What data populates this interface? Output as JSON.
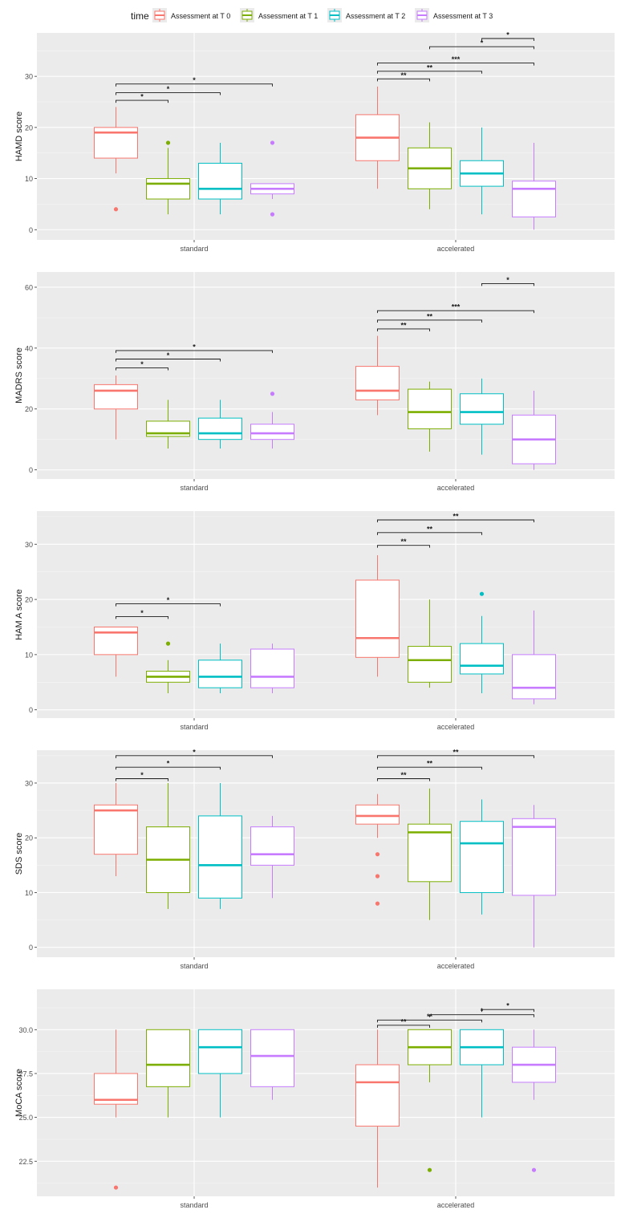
{
  "legend": {
    "title": "time",
    "entries": [
      {
        "label": "Assessment at T 0",
        "color": "#f8766d"
      },
      {
        "label": "Assessment at T 1",
        "color": "#7cae00"
      },
      {
        "label": "Assessment at T 2",
        "color": "#00bfc4"
      },
      {
        "label": "Assessment at T 3",
        "color": "#c77cff"
      }
    ],
    "placement": "top"
  },
  "chart_data": [
    {
      "type": "box",
      "ylabel": "HAMD score",
      "ylim": [
        -2,
        38.5
      ],
      "yticks": [
        0,
        10,
        20,
        30
      ],
      "categories": [
        "standard",
        "accelerated"
      ],
      "series": [
        {
          "name": "Assessment at T 0",
          "color": "#f8766d",
          "boxes": [
            {
              "q1": 14,
              "median": 19,
              "q3": 20,
              "whisker_low": 11,
              "whisker_high": 24,
              "outliers": [
                4
              ]
            },
            {
              "q1": 13.5,
              "median": 18,
              "q3": 22.5,
              "whisker_low": 8,
              "whisker_high": 28,
              "outliers": []
            }
          ]
        },
        {
          "name": "Assessment at T 1",
          "color": "#7cae00",
          "boxes": [
            {
              "q1": 6,
              "median": 9,
              "q3": 10,
              "whisker_low": 3,
              "whisker_high": 16,
              "outliers": [
                17
              ]
            },
            {
              "q1": 8,
              "median": 12,
              "q3": 16,
              "whisker_low": 4,
              "whisker_high": 21,
              "outliers": []
            }
          ]
        },
        {
          "name": "Assessment at T 2",
          "color": "#00bfc4",
          "boxes": [
            {
              "q1": 6,
              "median": 8,
              "q3": 13,
              "whisker_low": 3,
              "whisker_high": 17,
              "outliers": []
            },
            {
              "q1": 8.5,
              "median": 11,
              "q3": 13.5,
              "whisker_low": 3,
              "whisker_high": 20,
              "outliers": []
            }
          ]
        },
        {
          "name": "Assessment at T 3",
          "color": "#c77cff",
          "boxes": [
            {
              "q1": 7,
              "median": 8,
              "q3": 9,
              "whisker_low": 6,
              "whisker_high": 9,
              "outliers": [
                17,
                3
              ]
            },
            {
              "q1": 2.5,
              "median": 8,
              "q3": 9.5,
              "whisker_low": 0,
              "whisker_high": 17,
              "outliers": []
            }
          ]
        }
      ],
      "brackets": [
        {
          "category": 0,
          "from": 0,
          "to": 1,
          "label": "*",
          "y": 25.3
        },
        {
          "category": 0,
          "from": 0,
          "to": 2,
          "label": "*",
          "y": 26.8
        },
        {
          "category": 0,
          "from": 0,
          "to": 3,
          "label": "*",
          "y": 28.5
        },
        {
          "category": 1,
          "from": 0,
          "to": 1,
          "label": "**",
          "y": 29.5
        },
        {
          "category": 1,
          "from": 0,
          "to": 2,
          "label": "**",
          "y": 31
        },
        {
          "category": 1,
          "from": 0,
          "to": 3,
          "label": "***",
          "y": 32.6
        },
        {
          "category": 1,
          "from": 1,
          "to": 3,
          "label": "*",
          "y": 35.8
        },
        {
          "category": 1,
          "from": 2,
          "to": 3,
          "label": "*",
          "y": 37.4
        }
      ]
    },
    {
      "type": "box",
      "ylabel": "MADRS score",
      "ylim": [
        -3,
        65
      ],
      "yticks": [
        0,
        20,
        40,
        60
      ],
      "categories": [
        "standard",
        "accelerated"
      ],
      "series": [
        {
          "name": "Assessment at T 0",
          "color": "#f8766d",
          "boxes": [
            {
              "q1": 20,
              "median": 26,
              "q3": 28,
              "whisker_low": 10,
              "whisker_high": 31,
              "outliers": []
            },
            {
              "q1": 23,
              "median": 26,
              "q3": 34,
              "whisker_low": 18,
              "whisker_high": 44,
              "outliers": []
            }
          ]
        },
        {
          "name": "Assessment at T 1",
          "color": "#7cae00",
          "boxes": [
            {
              "q1": 11,
              "median": 12,
              "q3": 16,
              "whisker_low": 7,
              "whisker_high": 23,
              "outliers": []
            },
            {
              "q1": 13.5,
              "median": 19,
              "q3": 26.5,
              "whisker_low": 6,
              "whisker_high": 29,
              "outliers": []
            }
          ]
        },
        {
          "name": "Assessment at T 2",
          "color": "#00bfc4",
          "boxes": [
            {
              "q1": 10,
              "median": 12,
              "q3": 17,
              "whisker_low": 7,
              "whisker_high": 23,
              "outliers": []
            },
            {
              "q1": 15,
              "median": 19,
              "q3": 25,
              "whisker_low": 5,
              "whisker_high": 30,
              "outliers": []
            }
          ]
        },
        {
          "name": "Assessment at T 3",
          "color": "#c77cff",
          "boxes": [
            {
              "q1": 10,
              "median": 12,
              "q3": 15,
              "whisker_low": 7,
              "whisker_high": 19,
              "outliers": [
                25
              ]
            },
            {
              "q1": 2,
              "median": 10,
              "q3": 18,
              "whisker_low": 0,
              "whisker_high": 26,
              "outliers": []
            }
          ]
        }
      ],
      "brackets": [
        {
          "category": 0,
          "from": 0,
          "to": 1,
          "label": "*",
          "y": 33.5
        },
        {
          "category": 0,
          "from": 0,
          "to": 2,
          "label": "*",
          "y": 36.4
        },
        {
          "category": 0,
          "from": 0,
          "to": 3,
          "label": "*",
          "y": 39.2
        },
        {
          "category": 1,
          "from": 0,
          "to": 1,
          "label": "**",
          "y": 46.3
        },
        {
          "category": 1,
          "from": 0,
          "to": 2,
          "label": "**",
          "y": 49.2
        },
        {
          "category": 1,
          "from": 0,
          "to": 3,
          "label": "***",
          "y": 52.3
        },
        {
          "category": 1,
          "from": 2,
          "to": 3,
          "label": "*",
          "y": 61.2
        }
      ]
    },
    {
      "type": "box",
      "ylabel": "HAM A score",
      "ylim": [
        -1.5,
        36
      ],
      "yticks": [
        0,
        10,
        20,
        30
      ],
      "categories": [
        "standard",
        "accelerated"
      ],
      "series": [
        {
          "name": "Assessment at T 0",
          "color": "#f8766d",
          "boxes": [
            {
              "q1": 10,
              "median": 14,
              "q3": 15,
              "whisker_low": 6,
              "whisker_high": 15,
              "outliers": []
            },
            {
              "q1": 9.5,
              "median": 13,
              "q3": 23.5,
              "whisker_low": 6,
              "whisker_high": 28,
              "outliers": []
            }
          ]
        },
        {
          "name": "Assessment at T 1",
          "color": "#7cae00",
          "boxes": [
            {
              "q1": 5,
              "median": 6,
              "q3": 7,
              "whisker_low": 3,
              "whisker_high": 9,
              "outliers": [
                12
              ]
            },
            {
              "q1": 5,
              "median": 9,
              "q3": 11.5,
              "whisker_low": 4,
              "whisker_high": 20,
              "outliers": []
            }
          ]
        },
        {
          "name": "Assessment at T 2",
          "color": "#00bfc4",
          "boxes": [
            {
              "q1": 4,
              "median": 6,
              "q3": 9,
              "whisker_low": 3,
              "whisker_high": 12,
              "outliers": []
            },
            {
              "q1": 6.5,
              "median": 8,
              "q3": 12,
              "whisker_low": 3,
              "whisker_high": 17,
              "outliers": [
                21
              ]
            }
          ]
        },
        {
          "name": "Assessment at T 3",
          "color": "#c77cff",
          "boxes": [
            {
              "q1": 4,
              "median": 6,
              "q3": 11,
              "whisker_low": 3,
              "whisker_high": 12,
              "outliers": []
            },
            {
              "q1": 2,
              "median": 4,
              "q3": 10,
              "whisker_low": 1,
              "whisker_high": 18,
              "outliers": []
            }
          ]
        }
      ],
      "brackets": [
        {
          "category": 0,
          "from": 0,
          "to": 1,
          "label": "*",
          "y": 16.9
        },
        {
          "category": 0,
          "from": 0,
          "to": 2,
          "label": "*",
          "y": 19.2
        },
        {
          "category": 1,
          "from": 0,
          "to": 1,
          "label": "**",
          "y": 29.8
        },
        {
          "category": 1,
          "from": 0,
          "to": 2,
          "label": "**",
          "y": 32.1
        },
        {
          "category": 1,
          "from": 0,
          "to": 3,
          "label": "**",
          "y": 34.4
        }
      ]
    },
    {
      "type": "box",
      "ylabel": "SDS score",
      "ylim": [
        -1.8,
        36
      ],
      "yticks": [
        0,
        10,
        20,
        30
      ],
      "categories": [
        "standard",
        "accelerated"
      ],
      "series": [
        {
          "name": "Assessment at T 0",
          "color": "#f8766d",
          "boxes": [
            {
              "q1": 17,
              "median": 25,
              "q3": 26,
              "whisker_low": 13,
              "whisker_high": 30,
              "outliers": []
            },
            {
              "q1": 22.5,
              "median": 24,
              "q3": 26,
              "whisker_low": 20,
              "whisker_high": 28,
              "outliers": [
                17,
                13,
                8
              ]
            }
          ]
        },
        {
          "name": "Assessment at T 1",
          "color": "#7cae00",
          "boxes": [
            {
              "q1": 10,
              "median": 16,
              "q3": 22,
              "whisker_low": 7,
              "whisker_high": 30,
              "outliers": []
            },
            {
              "q1": 12,
              "median": 21,
              "q3": 22.5,
              "whisker_low": 5,
              "whisker_high": 29,
              "outliers": []
            }
          ]
        },
        {
          "name": "Assessment at T 2",
          "color": "#00bfc4",
          "boxes": [
            {
              "q1": 9,
              "median": 15,
              "q3": 24,
              "whisker_low": 7,
              "whisker_high": 30,
              "outliers": []
            },
            {
              "q1": 10,
              "median": 19,
              "q3": 23,
              "whisker_low": 6,
              "whisker_high": 27,
              "outliers": []
            }
          ]
        },
        {
          "name": "Assessment at T 3",
          "color": "#c77cff",
          "boxes": [
            {
              "q1": 15,
              "median": 17,
              "q3": 22,
              "whisker_low": 9,
              "whisker_high": 24,
              "outliers": []
            },
            {
              "q1": 9.5,
              "median": 22,
              "q3": 23.5,
              "whisker_low": 0,
              "whisker_high": 26,
              "outliers": []
            }
          ]
        }
      ],
      "brackets": [
        {
          "category": 0,
          "from": 0,
          "to": 1,
          "label": "*",
          "y": 30.8
        },
        {
          "category": 0,
          "from": 0,
          "to": 2,
          "label": "*",
          "y": 32.9
        },
        {
          "category": 0,
          "from": 0,
          "to": 3,
          "label": "*",
          "y": 35
        },
        {
          "category": 1,
          "from": 0,
          "to": 1,
          "label": "**",
          "y": 30.8
        },
        {
          "category": 1,
          "from": 0,
          "to": 2,
          "label": "**",
          "y": 32.9
        },
        {
          "category": 1,
          "from": 0,
          "to": 3,
          "label": "**",
          "y": 35
        }
      ]
    },
    {
      "type": "box",
      "ylabel": "MoCA score",
      "ylim": [
        20.5,
        32.3
      ],
      "yticks": [
        22.5,
        25.0,
        27.5,
        30.0
      ],
      "ytick_labels": [
        "22.5",
        "25.0",
        "27.5",
        "30.0"
      ],
      "categories": [
        "standard",
        "accelerated"
      ],
      "series": [
        {
          "name": "Assessment at T 0",
          "color": "#f8766d",
          "boxes": [
            {
              "q1": 25.75,
              "median": 26,
              "q3": 27.5,
              "whisker_low": 25,
              "whisker_high": 30,
              "outliers": [
                21
              ]
            },
            {
              "q1": 24.5,
              "median": 27,
              "q3": 28,
              "whisker_low": 21,
              "whisker_high": 30,
              "outliers": []
            }
          ]
        },
        {
          "name": "Assessment at T 1",
          "color": "#7cae00",
          "boxes": [
            {
              "q1": 26.75,
              "median": 28,
              "q3": 30,
              "whisker_low": 25,
              "whisker_high": 30,
              "outliers": []
            },
            {
              "q1": 28,
              "median": 29,
              "q3": 30,
              "whisker_low": 27,
              "whisker_high": 30,
              "outliers": [
                22
              ]
            }
          ]
        },
        {
          "name": "Assessment at T 2",
          "color": "#00bfc4",
          "boxes": [
            {
              "q1": 27.5,
              "median": 29,
              "q3": 30,
              "whisker_low": 25,
              "whisker_high": 30,
              "outliers": []
            },
            {
              "q1": 28,
              "median": 29,
              "q3": 30,
              "whisker_low": 25,
              "whisker_high": 30,
              "outliers": []
            }
          ]
        },
        {
          "name": "Assessment at T 3",
          "color": "#c77cff",
          "boxes": [
            {
              "q1": 26.75,
              "median": 28.5,
              "q3": 30,
              "whisker_low": 26,
              "whisker_high": 30,
              "outliers": []
            },
            {
              "q1": 27,
              "median": 28,
              "q3": 29,
              "whisker_low": 26,
              "whisker_high": 30,
              "outliers": [
                22
              ]
            }
          ]
        }
      ],
      "brackets": [
        {
          "category": 1,
          "from": 0,
          "to": 1,
          "label": "**",
          "y": 30.25
        },
        {
          "category": 1,
          "from": 0,
          "to": 2,
          "label": "**",
          "y": 30.55
        },
        {
          "category": 1,
          "from": 1,
          "to": 3,
          "label": "*",
          "y": 30.85
        },
        {
          "category": 1,
          "from": 2,
          "to": 3,
          "label": "*",
          "y": 31.15
        }
      ]
    }
  ]
}
